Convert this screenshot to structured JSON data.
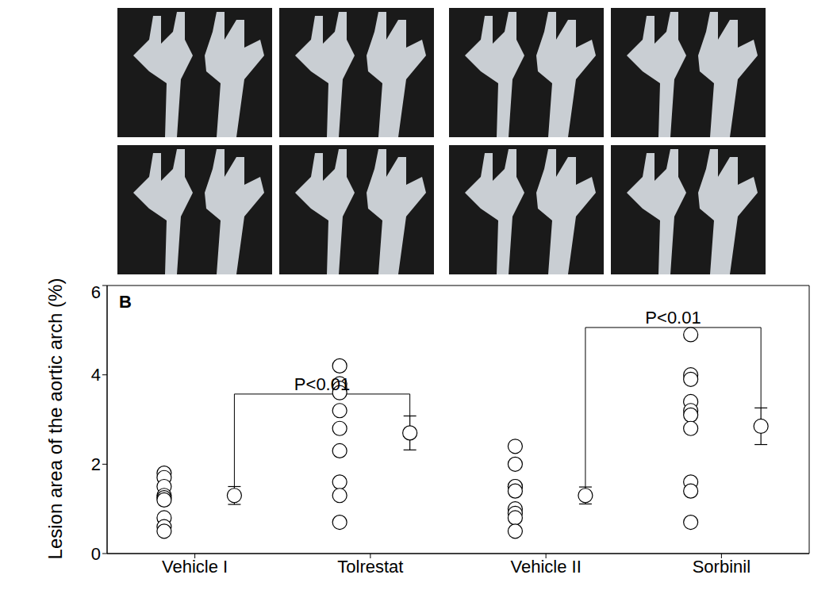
{
  "chart_data": {
    "type": "scatter",
    "panel_label": "B",
    "y_label": "Lesion area of the aortic arch (%)",
    "categories": [
      "Vehicle I",
      "Tolrestat",
      "Vehicle II",
      "Sorbinil"
    ],
    "values": [
      [
        1.8,
        1.7,
        1.5,
        1.3,
        1.25,
        1.2,
        0.8,
        0.6,
        0.5
      ],
      [
        4.2,
        3.8,
        3.7,
        3.6,
        3.2,
        2.8,
        2.3,
        1.6,
        1.3,
        0.7
      ],
      [
        2.4,
        2.0,
        1.5,
        1.5,
        1.4,
        1.0,
        0.9,
        0.8,
        0.5
      ],
      [
        4.9,
        4.0,
        3.9,
        3.4,
        3.2,
        3.1,
        2.8,
        1.6,
        1.4,
        0.7
      ]
    ],
    "means": [
      1.3,
      2.7,
      1.3,
      2.85
    ],
    "errors": [
      0.2,
      0.38,
      0.19,
      0.41
    ],
    "ylim": [
      0,
      6
    ],
    "yticks": [
      0,
      2,
      4,
      6
    ],
    "color": "#000000",
    "marker": "open circle",
    "annotations": [
      {
        "text": "P<0.01",
        "from": "Vehicle I",
        "to": "Tolrestat",
        "y": 3.57
      },
      {
        "text": "P<0.01",
        "from": "Vehicle II",
        "to": "Sorbinil",
        "y": 5.06
      }
    ]
  }
}
